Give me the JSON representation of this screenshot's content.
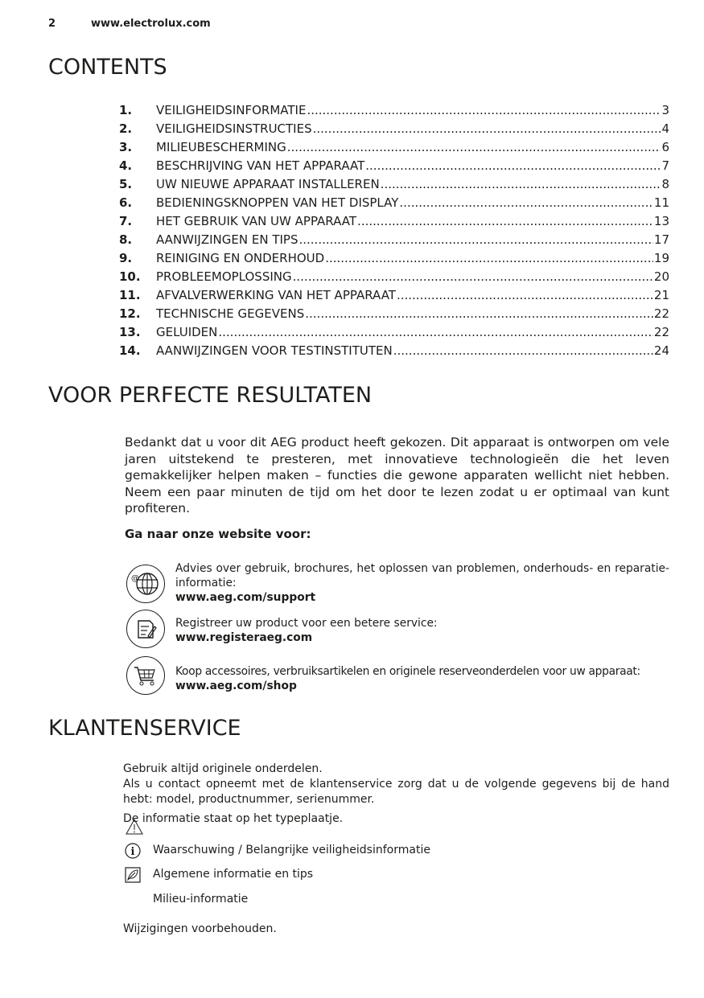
{
  "header": {
    "page_number": "2",
    "url": "www.electrolux.com"
  },
  "contents": {
    "title": "CONTENTS",
    "items": [
      {
        "num": "1.",
        "label": "VEILIGHEIDSINFORMATIE",
        "page": "3"
      },
      {
        "num": "2.",
        "label": "VEILIGHEIDSINSTRUCTIES",
        "page": "4"
      },
      {
        "num": "3.",
        "label": "MILIEUBESCHERMING",
        "page": "6"
      },
      {
        "num": "4.",
        "label": "BESCHRIJVING VAN HET APPARAAT",
        "page": "7"
      },
      {
        "num": "5.",
        "label": "UW NIEUWE APPARAAT INSTALLEREN",
        "page": "8"
      },
      {
        "num": "6.",
        "label": "BEDIENINGSKNOPPEN VAN HET DISPLAY",
        "page": "11"
      },
      {
        "num": "7.",
        "label": "HET GEBRUIK VAN UW APPARAAT",
        "page": "13"
      },
      {
        "num": "8.",
        "label": "AANWIJZINGEN EN TIPS",
        "page": "17"
      },
      {
        "num": "9.",
        "label": "REINIGING EN ONDERHOUD",
        "page": "19"
      },
      {
        "num": "10.",
        "label": "PROBLEEMOPLOSSING",
        "page": "20"
      },
      {
        "num": "11.",
        "label": "AFVALVERWERKING VAN HET APPARAAT",
        "page": "21"
      },
      {
        "num": "12.",
        "label": "TECHNISCHE GEGEVENS",
        "page": "22"
      },
      {
        "num": "13.",
        "label": "GELUIDEN",
        "page": "22"
      },
      {
        "num": "14.",
        "label": "AANWIJZINGEN VOOR TESTINSTITUTEN",
        "page": "24"
      }
    ]
  },
  "perfect": {
    "title": "VOOR PERFECTE RESULTATEN",
    "intro": "Bedankt dat u voor dit AEG product heeft gekozen. Dit apparaat is ontworpen om vele jaren uitstekend te presteren, met innovatieve technologieën die het leven gemakkelijker helpen maken – functies die gewone apparaten wellicht niet hebben. Neem een paar minuten de tijd om het door te lezen zodat u er optimaal van kunt profiteren.",
    "website_heading": "Ga naar onze website voor:",
    "links": [
      {
        "icon": "globe-icon",
        "text": "Advies over gebruik, brochures, het oplossen van problemen, onderhouds- en reparatie-informatie:",
        "url": "www.aeg.com/support"
      },
      {
        "icon": "register-note-icon",
        "text": "Registreer uw product voor een betere service:",
        "url": "www.registeraeg.com"
      },
      {
        "icon": "shopping-cart-icon",
        "text": "Koop accessoires, verbruiksartikelen en originele reserveonderdelen voor uw apparaat:",
        "url": "www.aeg.com/shop"
      }
    ]
  },
  "service": {
    "title": "KLANTENSERVICE",
    "line1": "Gebruik altijd originele onderdelen.",
    "line2": "Als u contact opneemt met de klantenservice zorg dat u de volgende gegevens bij de hand hebt: model, productnummer, serienummer.",
    "line3": "De informatie staat op het typeplaatje.",
    "legend": [
      {
        "icon": "warning-triangle-icon",
        "label": "Waarschuwing / Belangrijke veiligheidsinformatie"
      },
      {
        "icon": "info-icon",
        "label": "Algemene informatie en tips"
      },
      {
        "icon": "leaf-icon",
        "label": "Milieu-informatie"
      }
    ],
    "footer": "Wijzigingen voorbehouden."
  }
}
